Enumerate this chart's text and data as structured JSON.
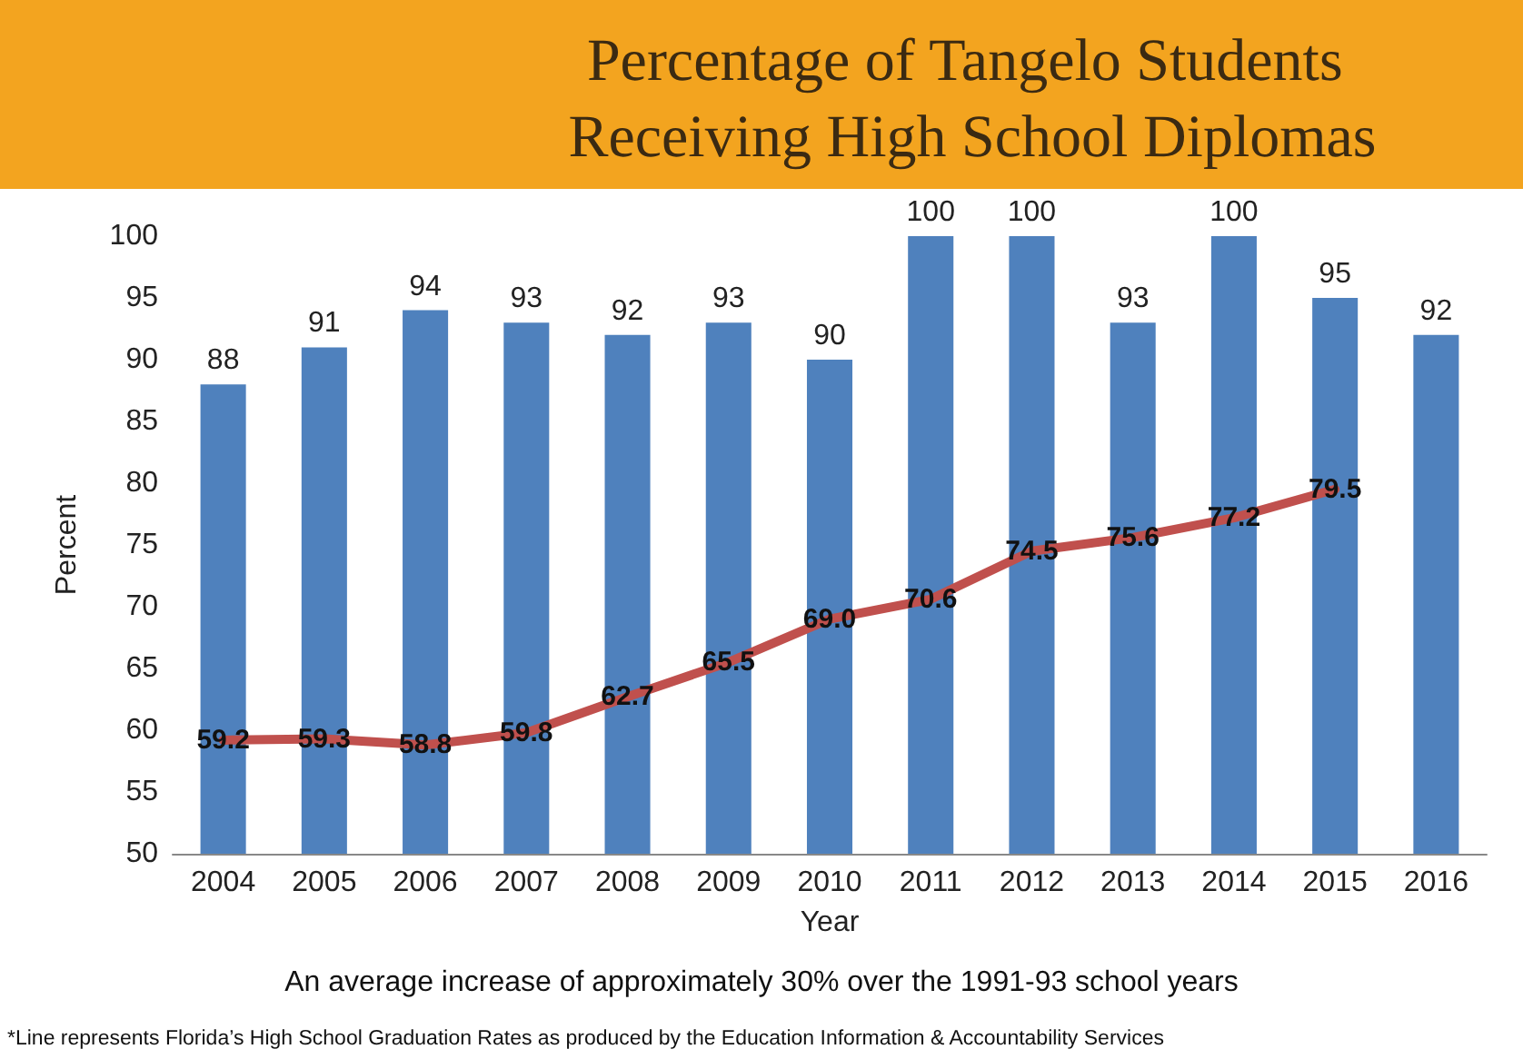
{
  "chart_data": {
    "type": "bar",
    "title": "Percentage of Tangelo Students Receiving High School Diplomas",
    "xlabel": "Year",
    "ylabel": "Percent",
    "categories": [
      "2004",
      "2005",
      "2006",
      "2007",
      "2008",
      "2009",
      "2010",
      "2011",
      "2012",
      "2013",
      "2014",
      "2015",
      "2016"
    ],
    "series": [
      {
        "color": "#4f81bd",
        "values": [
          88,
          91,
          94,
          93,
          92,
          93,
          90,
          100,
          100,
          93,
          100,
          95,
          92
        ]
      },
      {
        "type": "line",
        "color": "#c0504d",
        "values": [
          59.2,
          59.3,
          58.8,
          59.8,
          62.7,
          65.5,
          69.0,
          70.6,
          74.5,
          75.6,
          77.2,
          79.5,
          null
        ],
        "value_labels": [
          "59.2",
          "59.3",
          "58.8",
          "59.8",
          "62.7",
          "65.5",
          "69.0",
          "70.6",
          "74.5",
          "75.6",
          "77.2",
          "79.5",
          null
        ]
      }
    ],
    "data_labels": true,
    "ylim": [
      50,
      100
    ],
    "yticks": [
      50,
      55,
      60,
      65,
      70,
      75,
      80,
      85,
      90,
      95,
      100
    ],
    "grid": false,
    "marker": "none",
    "line_style": "solid",
    "annotations": [
      "An average increase of approximately 30% over the 1991-93 school years",
      "*Line represents Florida’s High School Graduation Rates as produced by the Education Information & Accountability Services"
    ]
  }
}
